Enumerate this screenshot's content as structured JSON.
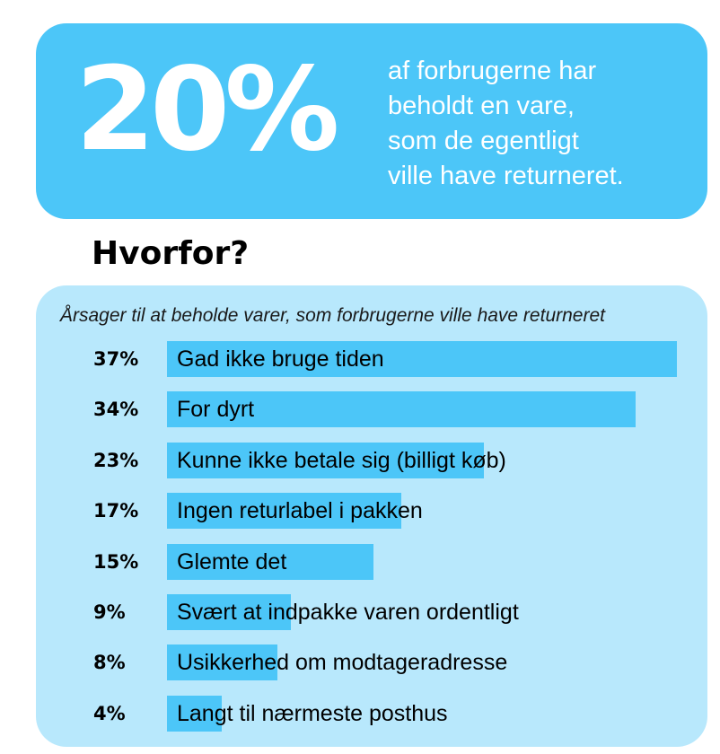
{
  "headline": {
    "value": "20%",
    "text": "af forbrugerne har\nbeholdt en vare,\nsom de egentligt\nville have returneret."
  },
  "question": "Hvorfor?",
  "colors": {
    "accent": "#4cc6f8",
    "panel": "#b8e8fc",
    "text": "#000000",
    "headline_text": "#ffffff"
  },
  "chart_data": {
    "type": "bar",
    "orientation": "horizontal",
    "title": "Årsager til at beholde varer, som forbrugerne ville have returneret",
    "unit": "%",
    "categories": [
      "Gad ikke bruge tiden",
      "For dyrt",
      "Kunne ikke betale sig (billigt køb)",
      "Ingen returlabel i pakken",
      "Glemte det",
      "Svært at indpakke varen ordentligt",
      "Usikkerhed om modtageradresse",
      "Langt til nærmeste posthus"
    ],
    "values": [
      37,
      34,
      23,
      17,
      15,
      9,
      8,
      4
    ],
    "value_labels": [
      "37%",
      "34%",
      "23%",
      "17%",
      "15%",
      "9%",
      "8%",
      "4%"
    ],
    "xlim": [
      0,
      37
    ],
    "grid": false,
    "legend": "none"
  }
}
